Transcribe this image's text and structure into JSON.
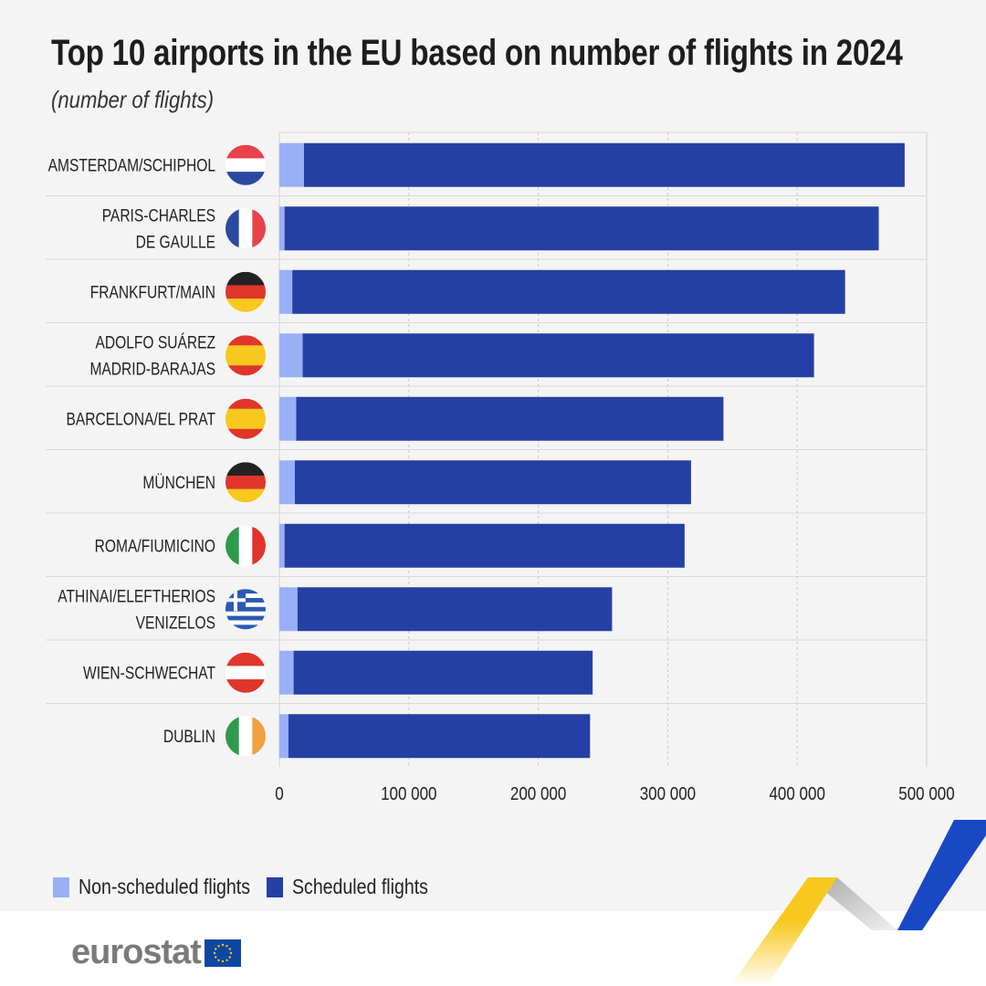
{
  "title": "Top 10 airports in the EU based on number of flights in 2024",
  "subtitle": "(number of flights)",
  "logo_text": "eurostat",
  "colors": {
    "non_scheduled": "#99b0f7",
    "scheduled": "#2540a4",
    "background": "#f4f4f5"
  },
  "chart_data": {
    "type": "bar",
    "orientation": "horizontal",
    "stacked": true,
    "title": "Top 10 airports in the EU based on number of flights in 2024",
    "subtitle": "(number of flights)",
    "xlabel": "",
    "ylabel": "",
    "xlim": [
      0,
      500000
    ],
    "x_ticks": [
      0,
      100000,
      200000,
      300000,
      400000,
      500000
    ],
    "x_tick_labels": [
      "0",
      "100 000",
      "200 000",
      "300 000",
      "400 000",
      "500 000"
    ],
    "grid": "vertical dashed",
    "legend_position": "bottom-left",
    "categories": [
      {
        "label": [
          "AMSTERDAM/SCHIPHOL"
        ],
        "flag": "netherlands-flag",
        "stripes": [
          "#e8414a",
          "#ffffff",
          "#2a4aa0"
        ],
        "dir": "h"
      },
      {
        "label": [
          "PARIS-CHARLES",
          "DE GAULLE"
        ],
        "flag": "france-flag",
        "stripes": [
          "#2a4aa0",
          "#ffffff",
          "#e8414a"
        ],
        "dir": "v"
      },
      {
        "label": [
          "FRANKFURT/MAIN"
        ],
        "flag": "germany-flag",
        "stripes": [
          "#222222",
          "#e0352b",
          "#f7c81e"
        ],
        "dir": "h"
      },
      {
        "label": [
          "ADOLFO SUÁREZ",
          "MADRID-BARAJAS"
        ],
        "flag": "spain-flag",
        "stripes": [
          "#e0352b",
          "#f7c81e",
          "#f7c81e",
          "#e0352b"
        ],
        "dir": "h"
      },
      {
        "label": [
          "BARCELONA/EL PRAT"
        ],
        "flag": "spain-flag",
        "stripes": [
          "#e0352b",
          "#f7c81e",
          "#f7c81e",
          "#e0352b"
        ],
        "dir": "h"
      },
      {
        "label": [
          "MÜNCHEN"
        ],
        "flag": "germany-flag",
        "stripes": [
          "#222222",
          "#e0352b",
          "#f7c81e"
        ],
        "dir": "h"
      },
      {
        "label": [
          "ROMA/FIUMICINO"
        ],
        "flag": "italy-flag",
        "stripes": [
          "#2e9a4a",
          "#ffffff",
          "#e0352b"
        ],
        "dir": "v"
      },
      {
        "label": [
          "ATHINAI/ELEFTHERIOS",
          "VENIZELOS"
        ],
        "flag": "greece-flag",
        "stripes": [
          "#2a5ab0",
          "#ffffff",
          "#2a5ab0",
          "#ffffff",
          "#2a5ab0",
          "#ffffff",
          "#2a5ab0",
          "#ffffff",
          "#2a5ab0"
        ],
        "dir": "h"
      },
      {
        "label": [
          "WIEN-SCHWECHAT"
        ],
        "flag": "austria-flag",
        "stripes": [
          "#e0352b",
          "#ffffff",
          "#e0352b"
        ],
        "dir": "h"
      },
      {
        "label": [
          "DUBLIN"
        ],
        "flag": "ireland-flag",
        "stripes": [
          "#2e9a4a",
          "#ffffff",
          "#f0a040"
        ],
        "dir": "v"
      }
    ],
    "series": [
      {
        "name": "Non-scheduled flights",
        "color": "#99b0f7",
        "values": [
          19000,
          4000,
          10000,
          18000,
          13000,
          12000,
          4000,
          14000,
          11000,
          7000
        ]
      },
      {
        "name": "Scheduled flights",
        "color": "#2540a4",
        "values": [
          464000,
          459000,
          427000,
          395000,
          330000,
          306000,
          309000,
          243000,
          231000,
          233000
        ]
      }
    ]
  }
}
